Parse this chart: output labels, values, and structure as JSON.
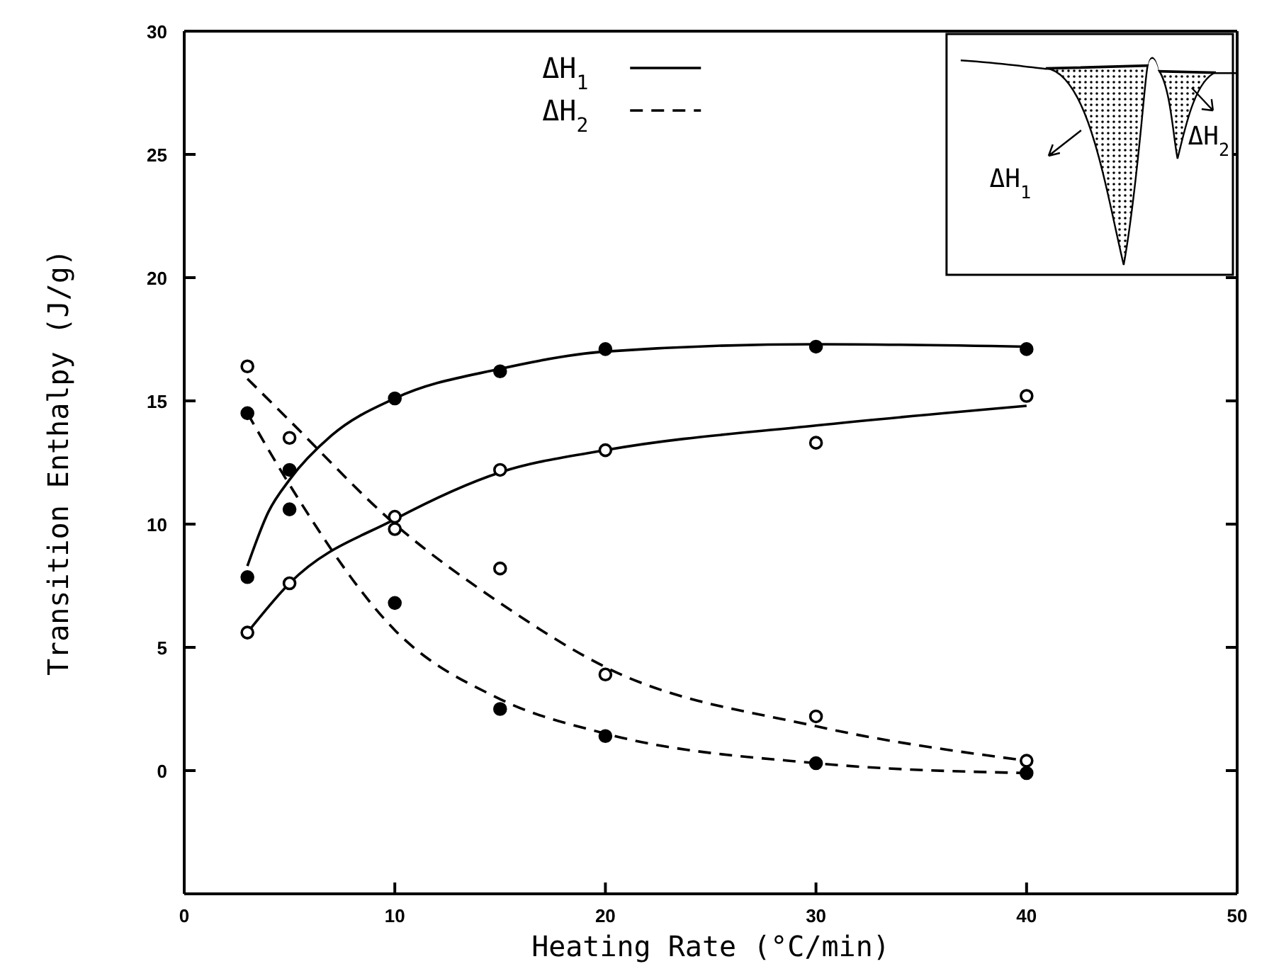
{
  "chart_data": {
    "type": "scatter",
    "xlabel": "Heating Rate (°C/min)",
    "ylabel": "Transition Enthalpy (J/g)",
    "xlim": [
      0,
      50
    ],
    "xticks": [
      0,
      10,
      20,
      30,
      40,
      50
    ],
    "ylim": [
      -5,
      30
    ],
    "yticks": [
      0,
      5,
      10,
      15,
      20,
      25,
      30
    ],
    "grid": false,
    "legend": "top",
    "marker": "circle",
    "annotations": [
      "ΔH$_{1}$",
      "ΔH$_{2}$"
    ],
    "series": [
      {
        "color": "#000000",
        "x": [
          3,
          5,
          10,
          15,
          20,
          30,
          40
        ],
        "values": [
          7.85,
          12.2,
          15.1,
          16.2,
          17.1,
          17.2,
          17.1
        ]
      },
      {
        "color": "#ffffff",
        "x": [
          3,
          5,
          10,
          15,
          20,
          30,
          40
        ],
        "values": [
          5.6,
          7.6,
          10.3,
          12.2,
          13.0,
          13.3,
          15.2
        ]
      },
      {
        "color": "#000000",
        "x": [
          3,
          5,
          10,
          15,
          20,
          30,
          40
        ],
        "values": [
          14.5,
          10.6,
          6.8,
          2.5,
          1.4,
          0.3,
          -0.1
        ]
      },
      {
        "color": "#ffffff",
        "x": [
          3,
          5,
          10,
          15,
          20,
          30,
          40
        ],
        "values": [
          16.4,
          13.5,
          9.8,
          8.2,
          3.9,
          2.2,
          0.4
        ]
      },
      {
        "type": "line",
        "name": "ΔH$_{1}$",
        "color": "#000000",
        "line_style": "solid",
        "marker": "none",
        "x": [
          3,
          4,
          5,
          7,
          10,
          15,
          20,
          30,
          40
        ],
        "values": [
          8.3,
          10.5,
          11.8,
          13.6,
          15.1,
          16.3,
          17.0,
          17.3,
          17.2
        ]
      },
      {
        "type": "line",
        "color": "#000000",
        "line_style": "solid",
        "marker": "none",
        "x": [
          3,
          5,
          10,
          15,
          20,
          30,
          40
        ],
        "values": [
          5.6,
          7.6,
          10.2,
          12.1,
          13.0,
          14.0,
          14.8
        ]
      },
      {
        "type": "line",
        "name": "ΔH$_{2}$",
        "color": "#000000",
        "line_style": "dashed",
        "marker": "none",
        "x": [
          3,
          5,
          10,
          15,
          20,
          30,
          40
        ],
        "values": [
          14.5,
          11.6,
          5.7,
          2.9,
          1.5,
          0.3,
          -0.1
        ]
      },
      {
        "type": "line",
        "color": "#000000",
        "line_style": "dashed",
        "marker": "none",
        "x": [
          3,
          5,
          10,
          15,
          20,
          30,
          40
        ],
        "values": [
          15.9,
          14.2,
          10.0,
          6.8,
          4.2,
          1.8,
          0.4
        ]
      }
    ]
  }
}
